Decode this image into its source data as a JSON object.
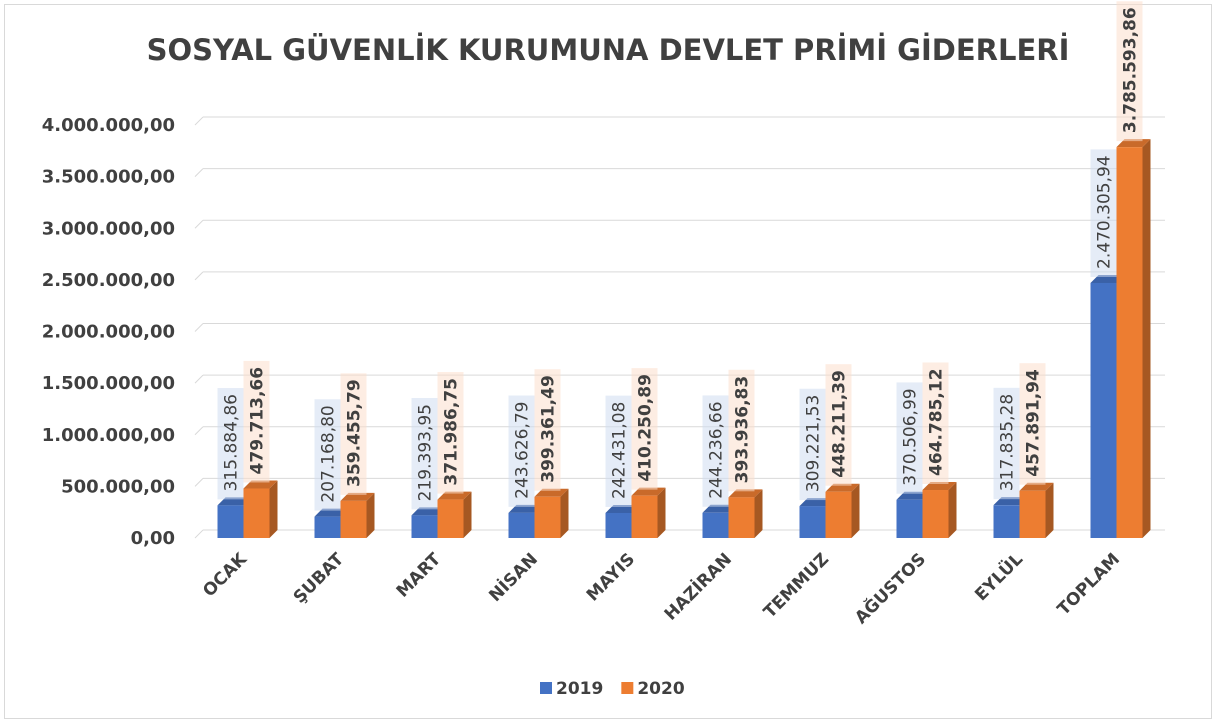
{
  "chart_data": {
    "type": "bar3d",
    "title": "SOSYAL GÜVENLİK KURUMUNA DEVLET PRİMİ GİDERLERİ",
    "categories": [
      "OCAK",
      "ŞUBAT",
      "MART",
      "NİSAN",
      "MAYIS",
      "HAZİRAN",
      "TEMMUZ",
      "AĞUSTOS",
      "EYLÜL",
      "TOPLAM"
    ],
    "series": [
      {
        "name": "2019",
        "color": "#4472c4",
        "values": [
          315884.86,
          207168.8,
          219393.95,
          243626.79,
          242431.08,
          244236.66,
          309221.53,
          370506.99,
          317835.28,
          2470305.94
        ],
        "value_labels": [
          "315.884,86",
          "207.168,80",
          "219.393,95",
          "243.626,79",
          "242.431,08",
          "244.236,66",
          "309.221,53",
          "370.506,99",
          "317.835,28",
          "2.470.305,94"
        ]
      },
      {
        "name": "2020",
        "color": "#ed7d31",
        "values": [
          479713.66,
          359455.79,
          371986.75,
          399361.49,
          410250.89,
          393936.83,
          448211.39,
          464785.12,
          457891.94,
          3785593.86
        ],
        "value_labels": [
          "479.713,66",
          "359.455,79",
          "371.986,75",
          "399.361,49",
          "410.250,89",
          "393.936,83",
          "448.211,39",
          "464.785,12",
          "457.891,94",
          "3.785.593,86"
        ]
      }
    ],
    "ylim": [
      0,
      4000000
    ],
    "yticks": [
      {
        "value": 0,
        "label": "0,00"
      },
      {
        "value": 500000,
        "label": "500.000,00"
      },
      {
        "value": 1000000,
        "label": "1.000.000,00"
      },
      {
        "value": 1500000,
        "label": "1.500.000,00"
      },
      {
        "value": 2000000,
        "label": "2.000.000,00"
      },
      {
        "value": 2500000,
        "label": "2.500.000,00"
      },
      {
        "value": 3000000,
        "label": "3.000.000,00"
      },
      {
        "value": 3500000,
        "label": "3.500.000,00"
      },
      {
        "value": 4000000,
        "label": "4.000.000,00"
      }
    ],
    "grid": true,
    "legend": "bottom"
  }
}
